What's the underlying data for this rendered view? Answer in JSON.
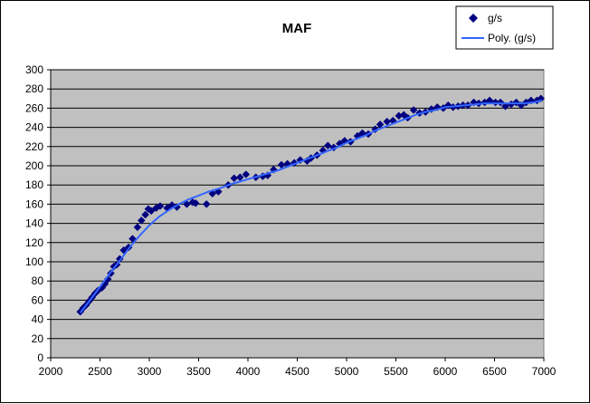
{
  "chart_data": {
    "type": "scatter",
    "title": "MAF",
    "xlabel": "",
    "ylabel": "",
    "xlim": [
      2000,
      7000
    ],
    "ylim": [
      0,
      300
    ],
    "x_ticks": [
      "2000",
      "2500",
      "3000",
      "3500",
      "4000",
      "4500",
      "5000",
      "5500",
      "6000",
      "6500",
      "7000"
    ],
    "y_ticks": [
      "0",
      "20",
      "40",
      "60",
      "80",
      "100",
      "120",
      "140",
      "160",
      "180",
      "200",
      "220",
      "240",
      "260",
      "280",
      "300"
    ],
    "grid": "horizontal",
    "legend_position": "top-right",
    "plot_background": "#c0c0c0",
    "series": [
      {
        "name": "g/s",
        "kind": "points",
        "color": "#000080",
        "marker": "diamond",
        "x": [
          2300,
          2330,
          2360,
          2390,
          2420,
          2450,
          2480,
          2520,
          2550,
          2580,
          2610,
          2640,
          2670,
          2700,
          2740,
          2790,
          2830,
          2880,
          2920,
          2960,
          2990,
          3020,
          3070,
          3110,
          3180,
          3230,
          3280,
          3380,
          3440,
          3470,
          3580,
          3640,
          3700,
          3800,
          3860,
          3920,
          3980,
          4080,
          4150,
          4200,
          4260,
          4340,
          4400,
          4470,
          4530,
          4600,
          4640,
          4700,
          4760,
          4810,
          4870,
          4930,
          4980,
          5040,
          5110,
          5160,
          5220,
          5290,
          5340,
          5410,
          5470,
          5530,
          5580,
          5620,
          5680,
          5740,
          5800,
          5860,
          5920,
          5980,
          6030,
          6080,
          6130,
          6180,
          6230,
          6290,
          6340,
          6400,
          6450,
          6510,
          6560,
          6610,
          6670,
          6720,
          6770,
          6820,
          6870,
          6930,
          6970
        ],
        "y": [
          48,
          52,
          55,
          59,
          63,
          67,
          70,
          73,
          77,
          82,
          88,
          95,
          97,
          103,
          112,
          115,
          124,
          136,
          143,
          149,
          155,
          153,
          156,
          158,
          156,
          159,
          157,
          160,
          162,
          161,
          160,
          171,
          173,
          180,
          187,
          188,
          191,
          188,
          189,
          190,
          196,
          201,
          202,
          203,
          206,
          205,
          208,
          211,
          216,
          221,
          219,
          223,
          226,
          225,
          231,
          234,
          233,
          238,
          243,
          246,
          247,
          252,
          253,
          250,
          258,
          255,
          256,
          259,
          261,
          260,
          263,
          261,
          262,
          263,
          263,
          266,
          265,
          266,
          268,
          266,
          266,
          262,
          264,
          266,
          263,
          266,
          268,
          268,
          270
        ]
      },
      {
        "name": "Poly. (g/s)",
        "kind": "line",
        "color": "#3366ff",
        "x": [
          2300,
          2400,
          2500,
          2600,
          2700,
          2800,
          2900,
          3000,
          3100,
          3200,
          3300,
          3400,
          3500,
          3600,
          3700,
          3800,
          3900,
          4000,
          4100,
          4200,
          4300,
          4400,
          4500,
          4600,
          4700,
          4800,
          4900,
          5000,
          5100,
          5200,
          5300,
          5400,
          5500,
          5600,
          5700,
          5800,
          5900,
          6000,
          6100,
          6200,
          6300,
          6400,
          6500,
          6600,
          6700,
          6800,
          6900,
          6980
        ],
        "y": [
          47,
          60,
          74,
          88,
          101,
          115,
          127,
          138,
          147,
          154,
          160,
          165,
          169,
          173,
          176,
          180,
          183,
          186,
          189,
          192,
          195,
          199,
          203,
          207,
          211,
          215,
          219,
          224,
          228,
          232,
          237,
          241,
          245,
          249,
          253,
          256,
          258,
          261,
          262,
          263,
          264,
          265,
          265,
          265,
          265,
          265,
          266,
          268
        ]
      }
    ]
  }
}
